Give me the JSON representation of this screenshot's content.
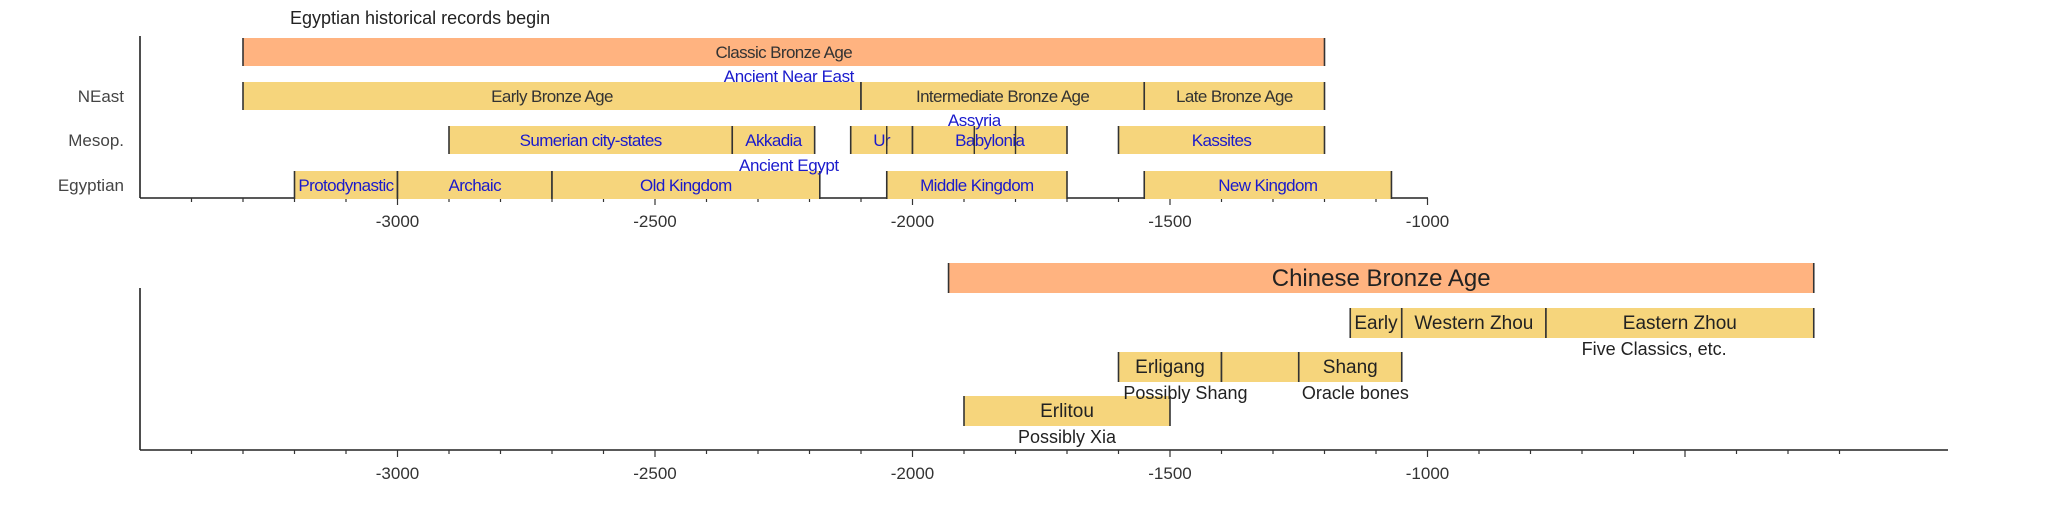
{
  "chart_data": [
    {
      "type": "timeline",
      "title": "",
      "xlim": [
        -3500,
        -1000
      ],
      "x_ticks": [
        -3000,
        -2500,
        -2000,
        -1500,
        -1000
      ],
      "row_labels": [
        "NEast",
        "Mesop.",
        "Egyptian"
      ],
      "top_note": "Egyptian historical records begin",
      "accent_color": "#ffb380",
      "bar_color": "#f6d57c",
      "link_color": "#1a1acc",
      "bars": [
        {
          "row": "top",
          "label": "Classic Bronze Age",
          "start": -3300,
          "end": -1200,
          "color": "#ffb380",
          "label_color": "#333333"
        },
        {
          "row": "NEast",
          "label": "Early Bronze Age",
          "start": -3300,
          "end": -2100,
          "color": "#f6d57c",
          "label_color": "#333333"
        },
        {
          "row": "NEast",
          "label": "Intermediate Bronze Age",
          "start": -2100,
          "end": -1550,
          "color": "#f6d57c",
          "label_color": "#333333"
        },
        {
          "row": "NEast",
          "label": "Late Bronze Age",
          "start": -1550,
          "end": -1200,
          "color": "#f6d57c",
          "label_color": "#333333"
        },
        {
          "row": "Mesop.",
          "label": "Sumerian city-states",
          "start": -2900,
          "end": -2350,
          "color": "#f6d57c",
          "label_color": "#1a1acc"
        },
        {
          "row": "Mesop.",
          "label": "Akkadia",
          "start": -2350,
          "end": -2190,
          "color": "#f6d57c",
          "label_color": "#1a1acc"
        },
        {
          "row": "Mesop.",
          "label": "Ur",
          "start": -2120,
          "end": -2000,
          "color": "#f6d57c",
          "label_color": "#1a1acc"
        },
        {
          "row": "Mesop.",
          "label": "Babylonia",
          "start": -2000,
          "end": -1700,
          "color": "#f6d57c",
          "label_color": "#1a1acc"
        },
        {
          "row": "Mesop.",
          "label": "Kassites",
          "start": -1600,
          "end": -1200,
          "color": "#f6d57c",
          "label_color": "#1a1acc"
        },
        {
          "row": "Egyptian",
          "label": "Protodynastic",
          "start": -3200,
          "end": -3000,
          "color": "#f6d57c",
          "label_color": "#1a1acc"
        },
        {
          "row": "Egyptian",
          "label": "Archaic",
          "start": -3000,
          "end": -2700,
          "color": "#f6d57c",
          "label_color": "#1a1acc"
        },
        {
          "row": "Egyptian",
          "label": "Old Kingdom",
          "start": -2700,
          "end": -2180,
          "color": "#f6d57c",
          "label_color": "#1a1acc"
        },
        {
          "row": "Egyptian",
          "label": "Middle Kingdom",
          "start": -2050,
          "end": -1700,
          "color": "#f6d57c",
          "label_color": "#1a1acc"
        },
        {
          "row": "Egyptian",
          "label": "New Kingdom",
          "start": -1550,
          "end": -1070,
          "color": "#f6d57c",
          "label_color": "#1a1acc"
        }
      ],
      "dividers": [
        {
          "row": "Mesop.",
          "at": -2050
        },
        {
          "row": "Mesop.",
          "at": -1880
        },
        {
          "row": "Mesop.",
          "at": -1800
        },
        {
          "row": "Egyptian",
          "at": -2180
        },
        {
          "row": "Egyptian",
          "at": -2050
        }
      ],
      "annotations": [
        {
          "text": "Ancient Near East",
          "x": -2240,
          "row": "NEast",
          "dy": -1,
          "color": "#1a1acc"
        },
        {
          "text": "Assyria",
          "x": -1880,
          "row": "Mesop.",
          "dy": -1,
          "color": "#1a1acc"
        },
        {
          "text": "Ancient Egypt",
          "x": -2240,
          "row": "Egyptian",
          "dy": -1,
          "color": "#1a1acc"
        }
      ]
    },
    {
      "type": "timeline",
      "title": "",
      "xlim": [
        -3500,
        -100
      ],
      "x_ticks": [
        -3000,
        -2500,
        -2000,
        -1500,
        -1000
      ],
      "bars": [
        {
          "row": 0,
          "label": "Chinese Bronze Age",
          "start": -1930,
          "end": -250,
          "color": "#ffb380",
          "big": true
        },
        {
          "row": 1,
          "label": "Early",
          "start": -1150,
          "end": -1050,
          "color": "#f6d57c"
        },
        {
          "row": 1,
          "label": "Western Zhou",
          "start": -1050,
          "end": -770,
          "color": "#f6d57c"
        },
        {
          "row": 1,
          "label": "Eastern Zhou",
          "start": -770,
          "end": -250,
          "color": "#f6d57c"
        },
        {
          "row": 2,
          "label": "Erligang",
          "start": -1600,
          "end": -1400,
          "color": "#f6d57c"
        },
        {
          "row": 2,
          "label": "",
          "start": -1400,
          "end": -1250,
          "color": "#f6d57c"
        },
        {
          "row": 2,
          "label": "Shang",
          "start": -1250,
          "end": -1050,
          "color": "#f6d57c"
        },
        {
          "row": 3,
          "label": "Erlitou",
          "start": -1900,
          "end": -1500,
          "color": "#f6d57c"
        }
      ],
      "notes": [
        {
          "text": "Five Classics, etc.",
          "x": -560,
          "row": 1
        },
        {
          "text": "Possibly Shang",
          "x": -1470,
          "row": 2
        },
        {
          "text": "Oracle bones",
          "x": -1140,
          "row": 2
        },
        {
          "text": "Possibly Xia",
          "x": -1700,
          "row": 3
        }
      ]
    }
  ]
}
